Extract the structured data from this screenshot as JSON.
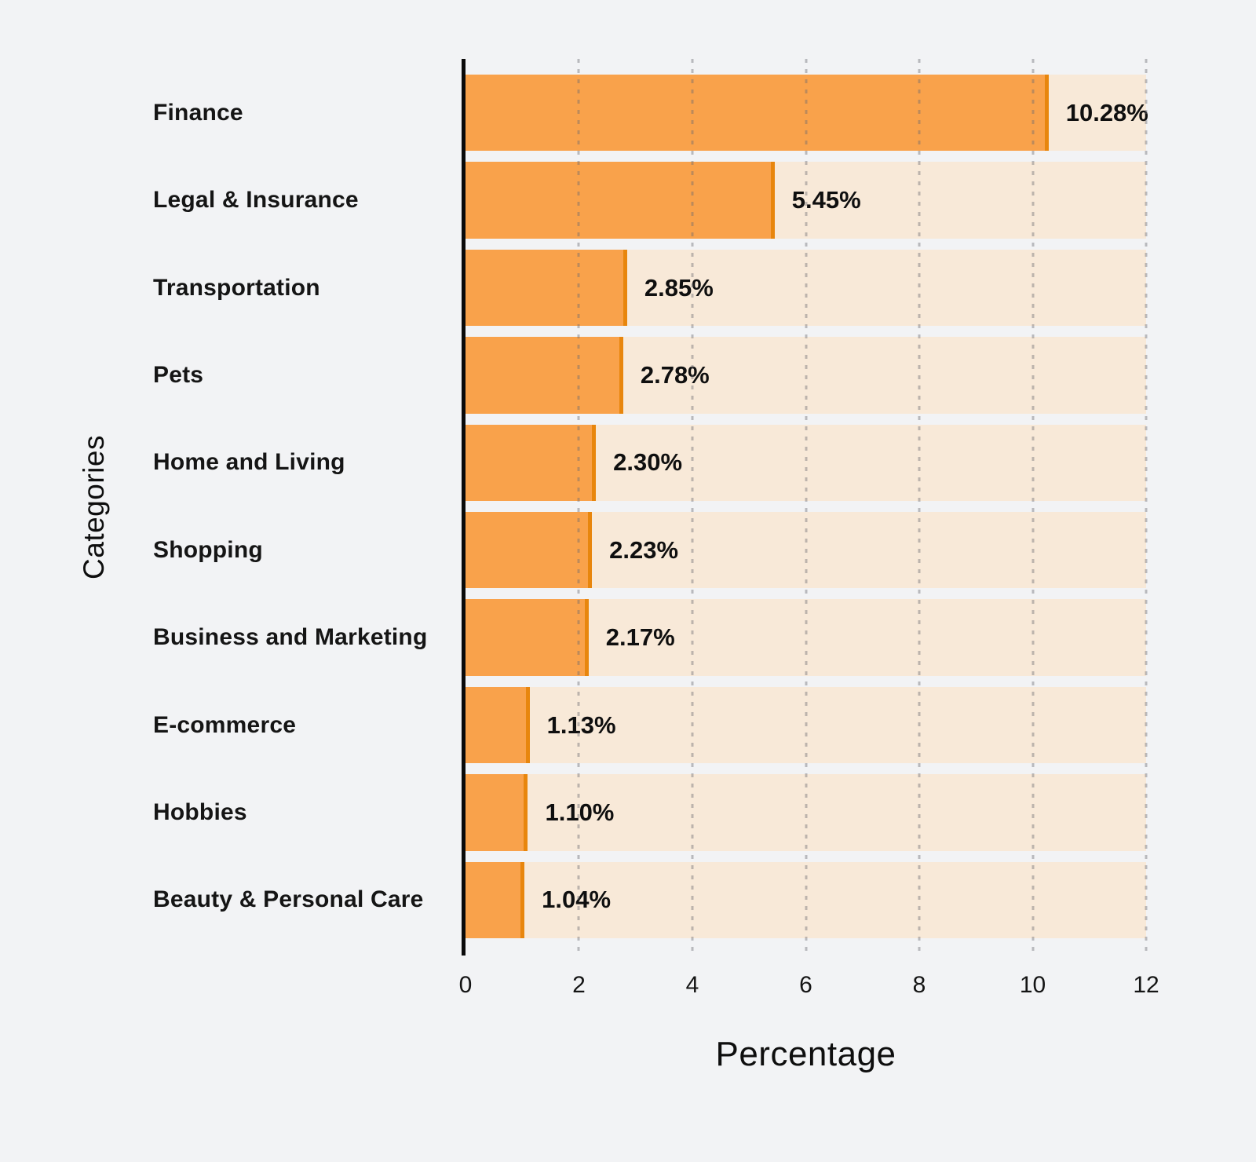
{
  "chart_data": {
    "type": "bar",
    "orientation": "horizontal",
    "title": "",
    "xlabel": "Percentage",
    "ylabel": "Categories",
    "categories": [
      "Finance",
      "Legal & Insurance",
      "Transportation",
      "Pets",
      "Home and Living",
      "Shopping",
      "Business and Marketing",
      "E-commerce",
      "Hobbies",
      "Beauty & Personal Care"
    ],
    "values": [
      10.28,
      5.45,
      2.85,
      2.78,
      2.3,
      2.23,
      2.17,
      1.13,
      1.1,
      1.04
    ],
    "value_labels": [
      "10.28%",
      "5.45%",
      "2.85%",
      "2.78%",
      "2.30%",
      "2.23%",
      "2.17%",
      "1.13%",
      "1.10%",
      "1.04%"
    ],
    "xlim": [
      0,
      12
    ],
    "xticks": [
      0,
      2,
      4,
      6,
      8,
      10,
      12
    ],
    "grid": "vertical-dotted",
    "legend": "none",
    "colors": {
      "bar": "#F9A24B",
      "bar_edge": "#E8860D",
      "track": "#F8E9D8",
      "background": "#F2F3F5",
      "text": "#111111",
      "grid": "#696970"
    }
  }
}
